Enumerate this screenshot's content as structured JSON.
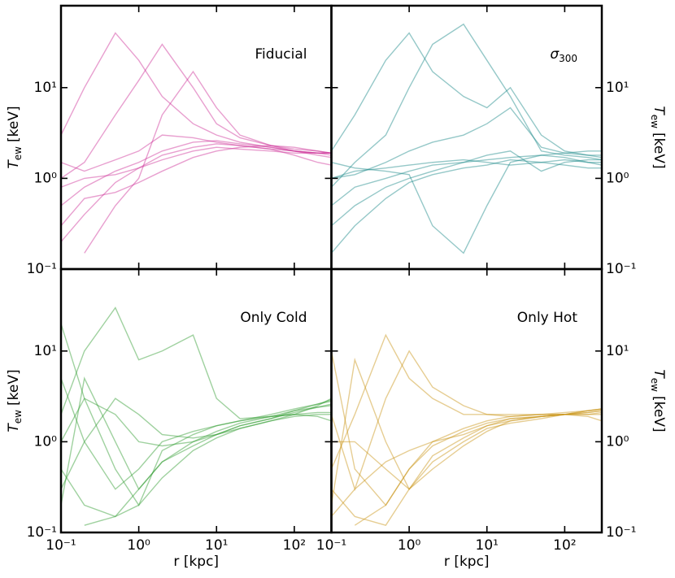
{
  "chart_data": [
    {
      "type": "line",
      "panel_label": "Fiducial",
      "xscale": "log",
      "yscale": "log",
      "xlim": [
        0.1,
        300
      ],
      "ylim": [
        0.1,
        80
      ],
      "xticks": [
        0.1,
        1,
        10,
        100
      ],
      "yticks": [
        {
          "value": 0.1,
          "label": "10⁻¹"
        },
        {
          "value": 1,
          "label": "10⁰"
        },
        {
          "value": 10,
          "label": "10¹"
        }
      ],
      "y_axis_side": "left",
      "y_label": {
        "symbol": "T",
        "subscript": "ew",
        "unit": "[keV]"
      },
      "x": [
        0.1,
        0.2,
        0.5,
        1,
        2,
        5,
        10,
        20,
        50,
        100,
        200,
        300
      ],
      "series": [
        {
          "color": "#cc2a95",
          "values": [
            0.5,
            0.8,
            1.2,
            1.5,
            2,
            2.5,
            2.6,
            2.4,
            2.2,
            2,
            1.9,
            1.9
          ]
        },
        {
          "color": "#cc2a95",
          "values": [
            1.5,
            1.2,
            1.6,
            2,
            3,
            2.8,
            2.5,
            2.3,
            2.1,
            2,
            1.9,
            1.8
          ]
        },
        {
          "color": "#cc2a95",
          "values": [
            0.2,
            0.4,
            0.9,
            1.3,
            1.8,
            2.2,
            2.4,
            2.3,
            2.1,
            1.8,
            1.5,
            1.4
          ]
        },
        {
          "color": "#cc2a95",
          "values": [
            3,
            10,
            40,
            20,
            8,
            4,
            3,
            2.5,
            2.2,
            2,
            1.9,
            1.9
          ]
        },
        {
          "color": "#cc2a95",
          "values": [
            0.8,
            1,
            1.1,
            1.3,
            1.6,
            2,
            2.2,
            2.1,
            2,
            1.9,
            1.9,
            1.9
          ]
        },
        {
          "color": "#cc2a95",
          "values": [
            null,
            0.15,
            0.5,
            1,
            5,
            15,
            6,
            3,
            2.3,
            2,
            1.8,
            1.7
          ]
        },
        {
          "color": "#cc2a95",
          "values": [
            1,
            1.5,
            5,
            12,
            30,
            10,
            4,
            2.8,
            2.3,
            2.1,
            2,
            1.9
          ]
        },
        {
          "color": "#cc2a95",
          "values": [
            0.3,
            0.6,
            0.7,
            0.9,
            1.2,
            1.7,
            2,
            2.2,
            2.3,
            2.2,
            2,
            1.9
          ]
        }
      ]
    },
    {
      "type": "line",
      "panel_label": {
        "symbol": "σ",
        "subscript": "300"
      },
      "xscale": "log",
      "yscale": "log",
      "xlim": [
        0.1,
        300
      ],
      "ylim": [
        0.1,
        80
      ],
      "xticks": [
        0.1,
        1,
        10,
        100
      ],
      "yticks": [
        {
          "value": 0.1,
          "label": "10⁻¹"
        },
        {
          "value": 1,
          "label": "10⁰"
        },
        {
          "value": 10,
          "label": "10¹"
        }
      ],
      "y_axis_side": "right",
      "y_label": {
        "symbol": "T",
        "subscript": "ew",
        "unit": "[keV]"
      },
      "x": [
        0.1,
        0.2,
        0.5,
        1,
        2,
        5,
        10,
        20,
        50,
        100,
        200,
        300
      ],
      "series": [
        {
          "color": "#138585",
          "values": [
            1,
            1.2,
            1.3,
            1.4,
            1.5,
            1.6,
            1.5,
            1.4,
            1.5,
            1.6,
            1.5,
            1.4
          ]
        },
        {
          "color": "#138585",
          "values": [
            2,
            5,
            20,
            40,
            15,
            8,
            6,
            10,
            3,
            2,
            1.8,
            1.7
          ]
        },
        {
          "color": "#138585",
          "values": [
            0.3,
            0.5,
            0.8,
            1,
            1.2,
            1.5,
            1.8,
            2,
            1.2,
            1.5,
            1.6,
            1.6
          ]
        },
        {
          "color": "#138585",
          "values": [
            0.8,
            1.5,
            3,
            10,
            30,
            50,
            20,
            8,
            2,
            1.8,
            1.7,
            1.6
          ]
        },
        {
          "color": "#138585",
          "values": [
            0.15,
            0.3,
            0.6,
            0.9,
            1.1,
            1.3,
            1.4,
            1.6,
            1.5,
            1.4,
            1.3,
            1.3
          ]
        },
        {
          "color": "#138585",
          "values": [
            1.5,
            1.3,
            1.2,
            1.1,
            0.3,
            0.15,
            0.5,
            1.5,
            1.8,
            1.7,
            1.5,
            1.5
          ]
        },
        {
          "color": "#138585",
          "values": [
            1,
            1.1,
            1.5,
            2,
            2.5,
            3,
            4,
            6,
            2.2,
            1.9,
            1.8,
            1.8
          ]
        },
        {
          "color": "#138585",
          "values": [
            0.5,
            0.8,
            1,
            1.2,
            1.4,
            1.5,
            1.6,
            1.7,
            1.8,
            1.9,
            2,
            2
          ]
        }
      ]
    },
    {
      "type": "line",
      "panel_label": "Only Cold",
      "xscale": "log",
      "yscale": "log",
      "xlim": [
        0.1,
        300
      ],
      "ylim": [
        0.1,
        80
      ],
      "xticks": [
        {
          "value": 0.1,
          "label": "10⁻¹"
        },
        {
          "value": 1,
          "label": "10⁰"
        },
        {
          "value": 10,
          "label": "10¹"
        },
        {
          "value": 100,
          "label": "10²"
        }
      ],
      "yticks": [
        {
          "value": 0.1,
          "label": "10⁻¹"
        },
        {
          "value": 1,
          "label": "10⁰"
        },
        {
          "value": 10,
          "label": "10¹"
        }
      ],
      "y_axis_side": "left",
      "x_label": "r [kpc]",
      "y_label": {
        "symbol": "T",
        "subscript": "ew",
        "unit": "[keV]"
      },
      "x": [
        0.1,
        0.2,
        0.5,
        1,
        2,
        5,
        10,
        20,
        50,
        100,
        200,
        300
      ],
      "series": [
        {
          "color": "#2a9a2a",
          "values": [
            20,
            3,
            0.5,
            0.2,
            0.8,
            1.2,
            1.5,
            1.7,
            2,
            2.3,
            2.6,
            2.8
          ]
        },
        {
          "color": "#2a9a2a",
          "values": [
            0.2,
            5,
            1,
            0.3,
            0.6,
            1,
            1.3,
            1.6,
            1.9,
            2.2,
            2.4,
            2.5
          ]
        },
        {
          "color": "#2a9a2a",
          "values": [
            2,
            10,
            30,
            8,
            10,
            15,
            3,
            1.8,
            1.9,
            2,
            2.1,
            2.1
          ]
        },
        {
          "color": "#2a9a2a",
          "values": [
            0.3,
            1,
            3,
            2,
            1.2,
            1.1,
            1.2,
            1.4,
            1.7,
            2,
            2.5,
            3
          ]
        },
        {
          "color": "#2a9a2a",
          "values": [
            null,
            0.12,
            0.15,
            0.3,
            0.6,
            0.9,
            1.2,
            1.5,
            1.8,
            2.1,
            2.4,
            2.6
          ]
        },
        {
          "color": "#2a9a2a",
          "values": [
            5,
            1,
            0.3,
            0.5,
            1,
            1.3,
            1.5,
            1.7,
            1.9,
            2,
            1.9,
            1.7
          ]
        },
        {
          "color": "#2a9a2a",
          "values": [
            1,
            3,
            2,
            1,
            0.9,
            1,
            1.2,
            1.5,
            1.8,
            2.2,
            2.6,
            2.9
          ]
        },
        {
          "color": "#2a9a2a",
          "values": [
            0.5,
            0.2,
            0.15,
            0.2,
            0.4,
            0.8,
            1.1,
            1.4,
            1.7,
            1.9,
            2,
            2
          ]
        }
      ]
    },
    {
      "type": "line",
      "panel_label": "Only Hot",
      "xscale": "log",
      "yscale": "log",
      "xlim": [
        0.1,
        300
      ],
      "ylim": [
        0.1,
        80
      ],
      "xticks": [
        {
          "value": 0.1,
          "label": "10⁻¹"
        },
        {
          "value": 1,
          "label": "10⁰"
        },
        {
          "value": 10,
          "label": "10¹"
        },
        {
          "value": 100,
          "label": "10²"
        }
      ],
      "yticks": [
        {
          "value": 0.1,
          "label": "10⁻¹"
        },
        {
          "value": 1,
          "label": "10⁰"
        },
        {
          "value": 10,
          "label": "10¹"
        }
      ],
      "y_axis_side": "right",
      "x_label": "r [kpc]",
      "y_label": {
        "symbol": "T",
        "subscript": "ew",
        "unit": "[keV]"
      },
      "x": [
        0.1,
        0.2,
        0.5,
        1,
        2,
        5,
        10,
        20,
        50,
        100,
        200,
        300
      ],
      "series": [
        {
          "color": "#c8900e",
          "values": [
            10,
            0.5,
            0.2,
            0.5,
            1,
            1.4,
            1.7,
            1.9,
            2,
            2,
            2,
            2.1
          ]
        },
        {
          "color": "#c8900e",
          "values": [
            0.2,
            8,
            1,
            0.3,
            0.7,
            1.1,
            1.5,
            1.8,
            1.9,
            2,
            2.1,
            2.2
          ]
        },
        {
          "color": "#c8900e",
          "values": [
            0.5,
            2,
            15,
            5,
            3,
            2,
            2,
            2,
            2,
            2.1,
            2.2,
            2.3
          ]
        },
        {
          "color": "#c8900e",
          "values": [
            null,
            0.12,
            0.2,
            0.5,
            0.9,
            1.3,
            1.6,
            1.8,
            1.9,
            2,
            2.2,
            2.3
          ]
        },
        {
          "color": "#c8900e",
          "values": [
            2,
            0.3,
            3,
            10,
            4,
            2.5,
            2,
            1.9,
            2,
            2,
            1.9,
            1.7
          ]
        },
        {
          "color": "#c8900e",
          "values": [
            0.15,
            0.3,
            0.6,
            0.8,
            1,
            1.2,
            1.5,
            1.7,
            1.9,
            2,
            2.1,
            2.2
          ]
        },
        {
          "color": "#c8900e",
          "values": [
            1,
            1,
            0.5,
            0.3,
            0.6,
            1,
            1.4,
            1.6,
            1.8,
            2,
            2.2,
            2.3
          ]
        },
        {
          "color": "#c8900e",
          "values": [
            0.3,
            0.15,
            0.12,
            0.3,
            0.5,
            0.9,
            1.3,
            1.7,
            1.9,
            2,
            2,
            2
          ]
        }
      ]
    }
  ]
}
